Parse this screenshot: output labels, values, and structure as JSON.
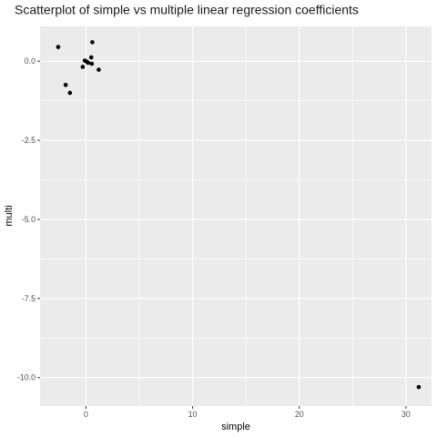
{
  "chart_data": {
    "type": "scatter",
    "title": "Scatterplot of simple vs multiple linear regression coefficients",
    "xlabel": "simple",
    "ylabel": "multi",
    "xlim": [
      -4.3,
      32.4
    ],
    "ylim": [
      -10.9,
      1.1
    ],
    "x_ticks": [
      0,
      10,
      20,
      30
    ],
    "x_tick_labels": [
      "0",
      "10",
      "20",
      "30"
    ],
    "y_ticks": [
      0.0,
      -2.5,
      -5.0,
      -7.5,
      -10.0
    ],
    "y_tick_labels": [
      "0.0",
      "-2.5",
      "-5.0",
      "-7.5",
      "-10.0"
    ],
    "grid": true,
    "colors": {
      "panel": "#ebebeb",
      "grid": "#ffffff",
      "point": "#000000"
    },
    "points": [
      {
        "x": -2.6,
        "y": 0.45
      },
      {
        "x": -1.9,
        "y": -0.75
      },
      {
        "x": -1.5,
        "y": -1.0
      },
      {
        "x": -0.3,
        "y": -0.18
      },
      {
        "x": -0.1,
        "y": 0.02
      },
      {
        "x": 0.1,
        "y": -0.02
      },
      {
        "x": 0.2,
        "y": -0.05
      },
      {
        "x": 0.5,
        "y": 0.12
      },
      {
        "x": 0.6,
        "y": 0.6
      },
      {
        "x": 0.55,
        "y": -0.08
      },
      {
        "x": 1.2,
        "y": -0.27
      },
      {
        "x": 31.2,
        "y": -10.3
      }
    ]
  }
}
